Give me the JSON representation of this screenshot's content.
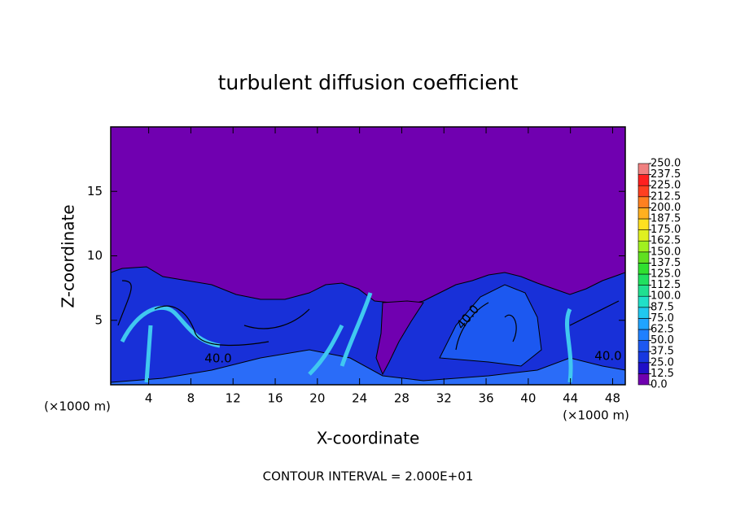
{
  "chart_data": {
    "type": "contour",
    "title": "turbulent diffusion coefficient",
    "x_label": "X-coordinate",
    "y_label": "Z-coordinate",
    "x_unit": "(×1000 m)",
    "y_unit": "(×1000 m)",
    "xlim": [
      0.4,
      49.2
    ],
    "ylim": [
      0,
      20
    ],
    "xticks": [
      4,
      8,
      12,
      16,
      20,
      24,
      28,
      32,
      36,
      40,
      44,
      48
    ],
    "yticks": [
      5,
      10,
      15
    ],
    "background_color": "#7000b0",
    "colorbar": {
      "ticks": [
        {
          "value": 0,
          "label": "0.0"
        },
        12.5,
        {
          "value": 25,
          "label": "25.0"
        },
        37.5,
        {
          "value": 50,
          "label": "50.0"
        },
        62.5,
        {
          "value": 75,
          "label": "75.0"
        },
        87.5,
        {
          "value": 100,
          "label": "100.0"
        },
        112.5,
        {
          "value": 125,
          "label": "125.0"
        },
        137.5,
        {
          "value": 150,
          "label": "150.0"
        },
        162.5,
        {
          "value": 175,
          "label": "175.0"
        },
        187.5,
        {
          "value": 200,
          "label": "200.0"
        },
        212.5,
        {
          "value": 225,
          "label": "225.0"
        },
        237.5,
        {
          "value": 250,
          "label": "250.0"
        }
      ],
      "colors": [
        "#7000b0",
        "#2010c8",
        "#1838e0",
        "#1c58f0",
        "#2080ff",
        "#20a4ff",
        "#20c8f0",
        "#20e0c8",
        "#20e090",
        "#20e060",
        "#30e030",
        "#60e020",
        "#a0f020",
        "#e0f020",
        "#ffe020",
        "#ffb020",
        "#ff8020",
        "#ff4020",
        "#ff2020",
        "#f08080"
      ]
    },
    "contour_labels": [
      {
        "value": 40,
        "label": "40.0"
      },
      {
        "value": 40,
        "label": "40.0"
      },
      {
        "value": 40,
        "label": "40.0"
      }
    ],
    "annotation": "CONTOUR INTERVAL = 2.000E+01"
  }
}
